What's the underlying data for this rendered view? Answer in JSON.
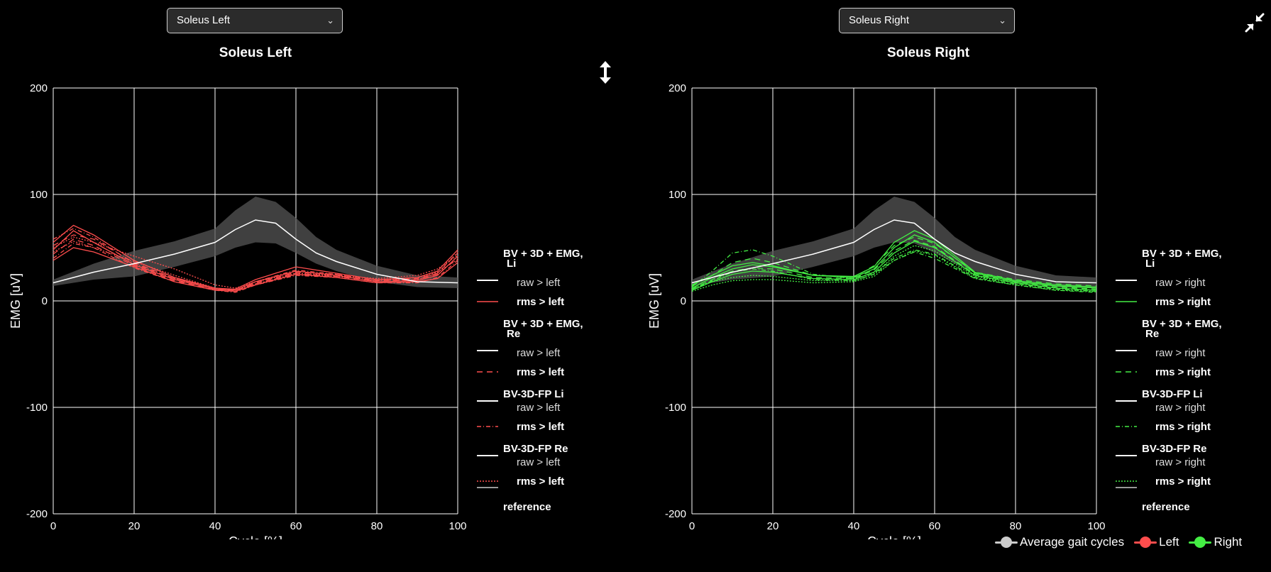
{
  "left_select": {
    "value": "Soleus Left"
  },
  "right_select": {
    "value": "Soleus Right"
  },
  "icons": {
    "resize": "vertical-resize-icon",
    "collapse": "collapse-icon",
    "dropdown": "chevron-down-icon"
  },
  "colors": {
    "left": "#ff4d4d",
    "right": "#44ee44",
    "reference": "#ffffff",
    "band": "#555555",
    "average": "#cccccc"
  },
  "bottom_legend": [
    {
      "label": "Average gait cycles",
      "color": "#cccccc"
    },
    {
      "label": "Left",
      "color": "#ff4d4d"
    },
    {
      "label": "Right",
      "color": "#44ee44"
    }
  ],
  "chart_data": [
    {
      "type": "line",
      "title": "Soleus Left",
      "xlabel": "Cycle [%]",
      "ylabel": "EMG [uV]",
      "xlim": [
        0,
        100
      ],
      "ylim": [
        -200,
        200
      ],
      "xticks": [
        "0",
        "20",
        "40",
        "60",
        "80",
        "100"
      ],
      "yticks": [
        "200",
        "100",
        "0",
        "-100",
        "-200"
      ],
      "grid": true,
      "legend_position": "right",
      "legend": [
        {
          "title": "BV + 3D + EMG, Li",
          "entries": [
            {
              "label": "raw > left",
              "style": "solid",
              "color": "#ffffff"
            },
            {
              "label": "rms > left",
              "style": "solid",
              "color": "#ff4d4d"
            }
          ]
        },
        {
          "title": "BV + 3D + EMG, Re",
          "entries": [
            {
              "label": "raw > left",
              "style": "solid",
              "color": "#ffffff"
            },
            {
              "label": "rms > left",
              "style": "dashed",
              "color": "#ff4d4d"
            }
          ]
        },
        {
          "title": "BV-3D-FP Li",
          "entries": [
            {
              "label": "raw > left",
              "style": "solid",
              "color": "#ffffff"
            },
            {
              "label": "rms > left",
              "style": "dashdot",
              "color": "#ff4d4d"
            }
          ]
        },
        {
          "title": "BV-3D-FP Re",
          "entries": [
            {
              "label": "raw > left",
              "style": "solid",
              "color": "#ffffff"
            },
            {
              "label": "rms > left",
              "style": "dotted",
              "color": "#ff4d4d"
            }
          ]
        },
        {
          "title": "reference",
          "entries": []
        }
      ],
      "reference": {
        "x": [
          0,
          10,
          20,
          30,
          40,
          45,
          50,
          55,
          60,
          65,
          70,
          80,
          90,
          100
        ],
        "mean": [
          17,
          27,
          35,
          44,
          55,
          67,
          76,
          73,
          58,
          45,
          37,
          25,
          18,
          17
        ],
        "upper": [
          20,
          35,
          47,
          56,
          68,
          85,
          98,
          93,
          78,
          60,
          48,
          33,
          24,
          22
        ],
        "lower": [
          14,
          20,
          23,
          32,
          42,
          50,
          55,
          54,
          45,
          35,
          28,
          18,
          13,
          12
        ]
      },
      "series": [
        {
          "style": "solid",
          "x": [
            0,
            5,
            10,
            20,
            30,
            40,
            45,
            50,
            60,
            70,
            80,
            90,
            95,
            100
          ],
          "values": [
            55,
            71,
            62,
            38,
            22,
            12,
            11,
            20,
            32,
            26,
            20,
            22,
            28,
            48
          ]
        },
        {
          "style": "solid",
          "x": [
            0,
            5,
            10,
            20,
            30,
            40,
            45,
            50,
            60,
            70,
            80,
            90,
            95,
            100
          ],
          "values": [
            48,
            66,
            55,
            34,
            20,
            11,
            10,
            18,
            28,
            24,
            18,
            19,
            24,
            42
          ]
        },
        {
          "style": "solid",
          "x": [
            0,
            5,
            10,
            20,
            30,
            40,
            45,
            50,
            60,
            70,
            80,
            90,
            95,
            100
          ],
          "values": [
            38,
            50,
            46,
            32,
            18,
            10,
            9,
            15,
            25,
            22,
            17,
            18,
            21,
            36
          ]
        },
        {
          "style": "dashed",
          "x": [
            0,
            5,
            10,
            20,
            30,
            40,
            45,
            50,
            60,
            70,
            80,
            90,
            95,
            100
          ],
          "values": [
            52,
            62,
            58,
            36,
            21,
            12,
            10,
            17,
            27,
            25,
            19,
            21,
            26,
            45
          ]
        },
        {
          "style": "dashed",
          "x": [
            0,
            5,
            10,
            20,
            30,
            40,
            45,
            50,
            60,
            70,
            80,
            90,
            95,
            100
          ],
          "values": [
            44,
            58,
            52,
            33,
            19,
            11,
            9,
            16,
            26,
            23,
            18,
            20,
            25,
            40
          ]
        },
        {
          "style": "dashdot",
          "x": [
            0,
            5,
            10,
            20,
            30,
            40,
            45,
            50,
            60,
            70,
            80,
            90,
            95,
            100
          ],
          "values": [
            58,
            68,
            60,
            35,
            21,
            12,
            10,
            18,
            29,
            25,
            19,
            20,
            26,
            46
          ]
        },
        {
          "style": "dashdot",
          "x": [
            0,
            5,
            10,
            20,
            30,
            40,
            45,
            50,
            60,
            70,
            80,
            90,
            95,
            100
          ],
          "values": [
            40,
            54,
            50,
            31,
            18,
            10,
            8,
            15,
            24,
            22,
            17,
            17,
            22,
            38
          ]
        },
        {
          "style": "dotted",
          "x": [
            0,
            5,
            10,
            20,
            30,
            40,
            45,
            50,
            60,
            70,
            80,
            90,
            95,
            100
          ],
          "values": [
            50,
            60,
            55,
            42,
            30,
            15,
            12,
            18,
            26,
            24,
            21,
            24,
            30,
            43
          ]
        },
        {
          "style": "dotted",
          "x": [
            0,
            5,
            10,
            20,
            30,
            40,
            45,
            50,
            60,
            70,
            80,
            90,
            95,
            100
          ],
          "values": [
            46,
            56,
            50,
            37,
            24,
            12,
            10,
            16,
            25,
            23,
            19,
            22,
            27,
            39
          ]
        }
      ]
    },
    {
      "type": "line",
      "title": "Soleus Right",
      "xlabel": "Cycle [%]",
      "ylabel": "EMG [uV]",
      "xlim": [
        0,
        100
      ],
      "ylim": [
        -200,
        200
      ],
      "xticks": [
        "0",
        "20",
        "40",
        "60",
        "80",
        "100"
      ],
      "yticks": [
        "200",
        "100",
        "0",
        "-100",
        "-200"
      ],
      "grid": true,
      "legend_position": "right",
      "legend": [
        {
          "title": "BV + 3D + EMG, Li",
          "entries": [
            {
              "label": "raw > right",
              "style": "solid",
              "color": "#ffffff"
            },
            {
              "label": "rms > right",
              "style": "solid",
              "color": "#44ee44"
            }
          ]
        },
        {
          "title": "BV + 3D + EMG, Re",
          "entries": [
            {
              "label": "raw > right",
              "style": "solid",
              "color": "#ffffff"
            },
            {
              "label": "rms > right",
              "style": "dashed",
              "color": "#44ee44"
            }
          ]
        },
        {
          "title": "BV-3D-FP Li",
          "entries": [
            {
              "label": "raw > right",
              "style": "solid",
              "color": "#ffffff"
            },
            {
              "label": "rms > right",
              "style": "dashdot",
              "color": "#44ee44"
            }
          ]
        },
        {
          "title": "BV-3D-FP Re",
          "entries": [
            {
              "label": "raw > right",
              "style": "solid",
              "color": "#ffffff"
            },
            {
              "label": "rms > right",
              "style": "dotted",
              "color": "#44ee44"
            }
          ]
        },
        {
          "title": "reference",
          "entries": []
        }
      ],
      "reference": {
        "x": [
          0,
          10,
          20,
          30,
          40,
          45,
          50,
          55,
          60,
          65,
          70,
          80,
          90,
          100
        ],
        "mean": [
          17,
          27,
          35,
          44,
          55,
          67,
          76,
          73,
          58,
          45,
          37,
          25,
          18,
          17
        ],
        "upper": [
          20,
          35,
          47,
          56,
          68,
          85,
          98,
          93,
          78,
          60,
          48,
          33,
          24,
          22
        ],
        "lower": [
          14,
          20,
          23,
          32,
          42,
          50,
          55,
          54,
          45,
          35,
          28,
          18,
          13,
          12
        ]
      },
      "series": [
        {
          "style": "solid",
          "x": [
            0,
            5,
            10,
            15,
            20,
            30,
            40,
            45,
            50,
            55,
            60,
            70,
            80,
            90,
            100
          ],
          "values": [
            12,
            22,
            30,
            34,
            32,
            24,
            22,
            30,
            50,
            62,
            55,
            26,
            18,
            14,
            12
          ]
        },
        {
          "style": "solid",
          "x": [
            0,
            5,
            10,
            15,
            20,
            30,
            40,
            45,
            50,
            55,
            60,
            70,
            80,
            90,
            100
          ],
          "values": [
            15,
            24,
            33,
            36,
            33,
            24,
            23,
            32,
            55,
            66,
            58,
            27,
            19,
            15,
            13
          ]
        },
        {
          "style": "solid",
          "x": [
            0,
            5,
            10,
            15,
            20,
            30,
            40,
            45,
            50,
            55,
            60,
            70,
            80,
            90,
            100
          ],
          "values": [
            10,
            18,
            25,
            28,
            27,
            21,
            20,
            27,
            45,
            56,
            50,
            24,
            17,
            12,
            10
          ]
        },
        {
          "style": "dashed",
          "x": [
            0,
            5,
            10,
            15,
            20,
            30,
            40,
            45,
            50,
            55,
            60,
            70,
            80,
            90,
            100
          ],
          "values": [
            14,
            24,
            36,
            40,
            36,
            24,
            22,
            33,
            52,
            60,
            54,
            27,
            20,
            16,
            14
          ]
        },
        {
          "style": "dashed",
          "x": [
            0,
            5,
            10,
            15,
            20,
            30,
            40,
            45,
            50,
            55,
            60,
            70,
            80,
            90,
            100
          ],
          "values": [
            11,
            20,
            28,
            31,
            30,
            22,
            21,
            29,
            47,
            57,
            51,
            25,
            18,
            13,
            11
          ]
        },
        {
          "style": "dashdot",
          "x": [
            0,
            5,
            10,
            15,
            20,
            30,
            40,
            45,
            50,
            55,
            60,
            70,
            80,
            90,
            100
          ],
          "values": [
            13,
            28,
            45,
            48,
            42,
            25,
            21,
            26,
            40,
            48,
            44,
            22,
            16,
            11,
            9
          ]
        },
        {
          "style": "dashdot",
          "x": [
            0,
            5,
            10,
            15,
            20,
            30,
            40,
            45,
            50,
            55,
            60,
            70,
            80,
            90,
            100
          ],
          "values": [
            10,
            19,
            27,
            30,
            28,
            20,
            19,
            25,
            38,
            46,
            40,
            21,
            15,
            10,
            8
          ]
        },
        {
          "style": "dotted",
          "x": [
            0,
            5,
            10,
            15,
            20,
            30,
            40,
            45,
            50,
            55,
            60,
            70,
            80,
            90,
            100
          ],
          "values": [
            12,
            18,
            22,
            24,
            23,
            19,
            19,
            25,
            42,
            52,
            47,
            23,
            17,
            12,
            10
          ]
        },
        {
          "style": "dotted",
          "x": [
            0,
            5,
            10,
            15,
            20,
            30,
            40,
            45,
            50,
            55,
            60,
            70,
            80,
            90,
            100
          ],
          "values": [
            9,
            15,
            19,
            20,
            20,
            17,
            18,
            23,
            38,
            47,
            43,
            21,
            15,
            10,
            9
          ]
        }
      ]
    }
  ]
}
